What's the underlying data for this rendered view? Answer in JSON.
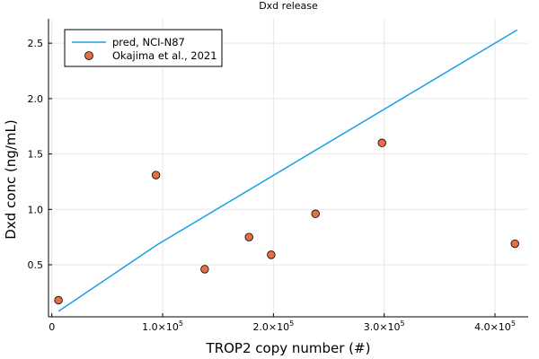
{
  "chart_data": {
    "type": "line+scatter",
    "title": "Dxd release",
    "xlabel": "TROP2 copy number (#)",
    "ylabel": "Dxd conc (ng/mL)",
    "xlim": [
      -3000,
      430000
    ],
    "ylim": [
      0.03,
      2.72
    ],
    "x_ticks": [
      0,
      100000,
      200000,
      300000,
      400000
    ],
    "x_tick_labels": [
      {
        "base": "0",
        "exp": ""
      },
      {
        "base": "1.0×10",
        "exp": "5"
      },
      {
        "base": "2.0×10",
        "exp": "5"
      },
      {
        "base": "3.0×10",
        "exp": "5"
      },
      {
        "base": "4.0×10",
        "exp": "5"
      }
    ],
    "y_ticks": [
      0.5,
      1.0,
      1.5,
      2.0,
      2.5
    ],
    "y_tick_labels": [
      "0.5",
      "1.0",
      "1.5",
      "2.0",
      "2.5"
    ],
    "grid": true,
    "legend_position": "top-left",
    "series": [
      {
        "name": "pred, NCI-N87",
        "kind": "line",
        "color": "#1a9ee6",
        "x": [
          6000,
          95000,
          420000
        ],
        "y": [
          0.08,
          0.68,
          2.62
        ]
      },
      {
        "name": "Okajima et al., 2021",
        "kind": "scatter",
        "color": "#e26f46",
        "x": [
          6000,
          94000,
          138000,
          178000,
          198000,
          238000,
          298000,
          418000
        ],
        "y": [
          0.18,
          1.31,
          0.46,
          0.75,
          0.59,
          0.96,
          1.6,
          0.69
        ]
      }
    ]
  }
}
